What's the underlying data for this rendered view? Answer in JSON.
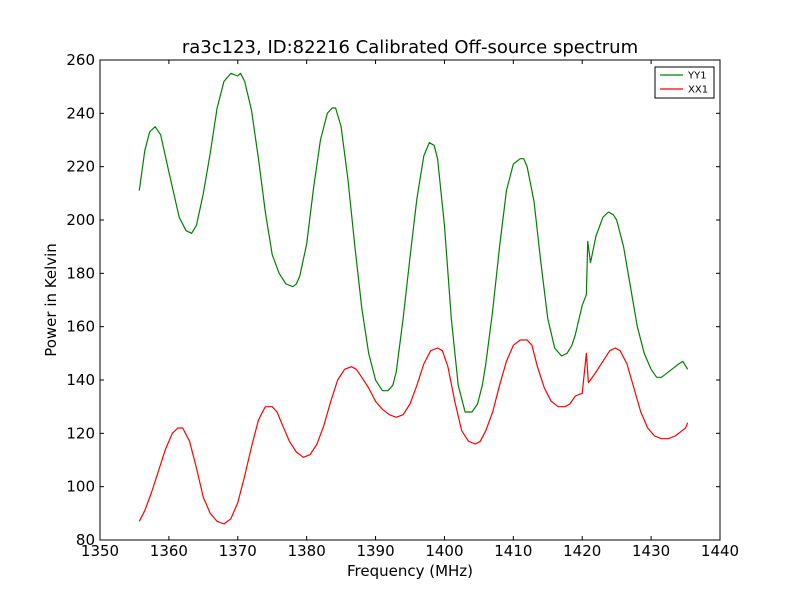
{
  "chart_data": {
    "type": "line",
    "title": "ra3c123, ID:82216 Calibrated Off-source spectrum",
    "xlabel": "Frequency (MHz)",
    "ylabel": "Power in Kelvin",
    "xlim": [
      1350,
      1440
    ],
    "ylim": [
      80,
      260
    ],
    "xticks": [
      1350,
      1360,
      1370,
      1380,
      1390,
      1400,
      1410,
      1420,
      1430,
      1440
    ],
    "yticks": [
      80,
      100,
      120,
      140,
      160,
      180,
      200,
      220,
      240,
      260
    ],
    "grid": false,
    "legend_position": "top-right",
    "series": [
      {
        "name": "YY1",
        "color": "#008000",
        "x": [
          1355.7,
          1356.5,
          1357.2,
          1358.0,
          1358.8,
          1360.0,
          1361.5,
          1362.5,
          1363.3,
          1364.0,
          1365.0,
          1366.0,
          1367.0,
          1368.0,
          1369.0,
          1370.0,
          1370.4,
          1371.0,
          1372.0,
          1373.0,
          1374.0,
          1375.0,
          1376.0,
          1377.0,
          1378.0,
          1378.5,
          1379.0,
          1380.0,
          1381.0,
          1382.0,
          1383.0,
          1383.7,
          1384.2,
          1385.0,
          1386.0,
          1387.0,
          1388.0,
          1389.0,
          1390.0,
          1391.0,
          1391.8,
          1392.5,
          1393.0,
          1394.0,
          1395.0,
          1396.0,
          1397.0,
          1397.8,
          1398.5,
          1399.0,
          1400.0,
          1401.0,
          1402.0,
          1403.0,
          1404.0,
          1404.8,
          1405.5,
          1406.0,
          1407.0,
          1408.0,
          1409.0,
          1410.0,
          1411.0,
          1411.5,
          1412.0,
          1413.0,
          1414.0,
          1415.0,
          1416.0,
          1417.0,
          1417.8,
          1418.5,
          1419.0,
          1420.0,
          1420.6,
          1420.8,
          1421.2,
          1421.6,
          1422.0,
          1423.0,
          1423.8,
          1424.5,
          1425.0,
          1426.0,
          1427.0,
          1428.0,
          1429.0,
          1430.0,
          1430.8,
          1431.5,
          1432.0,
          1433.0,
          1434.0,
          1434.6,
          1435.3
        ],
        "y": [
          211,
          226,
          233,
          235,
          232,
          218,
          201,
          196,
          195,
          198,
          210,
          225,
          242,
          252,
          255,
          254,
          255,
          252,
          241,
          223,
          203,
          187,
          180,
          176,
          175,
          176,
          179,
          191,
          212,
          230,
          240,
          242,
          242,
          235,
          215,
          190,
          167,
          150,
          140,
          136,
          136,
          138,
          143,
          163,
          186,
          208,
          224,
          229,
          228,
          223,
          198,
          163,
          138,
          128,
          128,
          131,
          138,
          146,
          166,
          190,
          211,
          221,
          223,
          223,
          220,
          207,
          184,
          163,
          152,
          149,
          150,
          153,
          157,
          168,
          172,
          192,
          184,
          189,
          194,
          201,
          203,
          202,
          200,
          190,
          175,
          160,
          150,
          144,
          141,
          141,
          142,
          144,
          146,
          147,
          144
        ]
      },
      {
        "name": "XX1",
        "color": "#ff0000",
        "x": [
          1355.7,
          1356.5,
          1357.5,
          1358.5,
          1359.5,
          1360.5,
          1361.3,
          1362.0,
          1363.0,
          1364.0,
          1365.0,
          1366.0,
          1367.0,
          1368.0,
          1369.0,
          1370.0,
          1371.0,
          1372.0,
          1373.0,
          1374.0,
          1375.0,
          1375.7,
          1376.5,
          1377.5,
          1378.5,
          1379.5,
          1380.5,
          1381.5,
          1382.5,
          1383.5,
          1384.5,
          1385.5,
          1386.5,
          1387.2,
          1388.0,
          1389.0,
          1390.0,
          1391.0,
          1392.0,
          1393.0,
          1394.0,
          1395.0,
          1396.0,
          1397.0,
          1398.0,
          1399.0,
          1399.7,
          1400.5,
          1401.5,
          1402.5,
          1403.5,
          1404.5,
          1405.2,
          1406.0,
          1407.0,
          1408.0,
          1409.0,
          1410.0,
          1411.0,
          1412.0,
          1412.7,
          1413.5,
          1414.5,
          1415.5,
          1416.5,
          1417.5,
          1418.2,
          1419.0,
          1420.0,
          1420.6,
          1420.9,
          1421.2,
          1422.0,
          1423.0,
          1424.0,
          1424.8,
          1425.5,
          1426.5,
          1427.5,
          1428.5,
          1429.5,
          1430.5,
          1431.5,
          1432.5,
          1433.5,
          1434.5,
          1435.0,
          1435.3
        ],
        "y": [
          87,
          91,
          98,
          106,
          114,
          120,
          122,
          122,
          117,
          107,
          96,
          90,
          87,
          86,
          88,
          94,
          104,
          115,
          125,
          130,
          130,
          128,
          123,
          117,
          113,
          111,
          112,
          116,
          123,
          132,
          140,
          144,
          145,
          144,
          141,
          137,
          132,
          129,
          127,
          126,
          127,
          131,
          138,
          146,
          151,
          152,
          151,
          145,
          132,
          121,
          117,
          116,
          117,
          121,
          128,
          138,
          147,
          153,
          155,
          155,
          153,
          145,
          137,
          132,
          130,
          130,
          131,
          134,
          135,
          150,
          139,
          140,
          143,
          147,
          151,
          152,
          151,
          146,
          137,
          128,
          122,
          119,
          118,
          118,
          119,
          121,
          122,
          124
        ]
      }
    ]
  }
}
